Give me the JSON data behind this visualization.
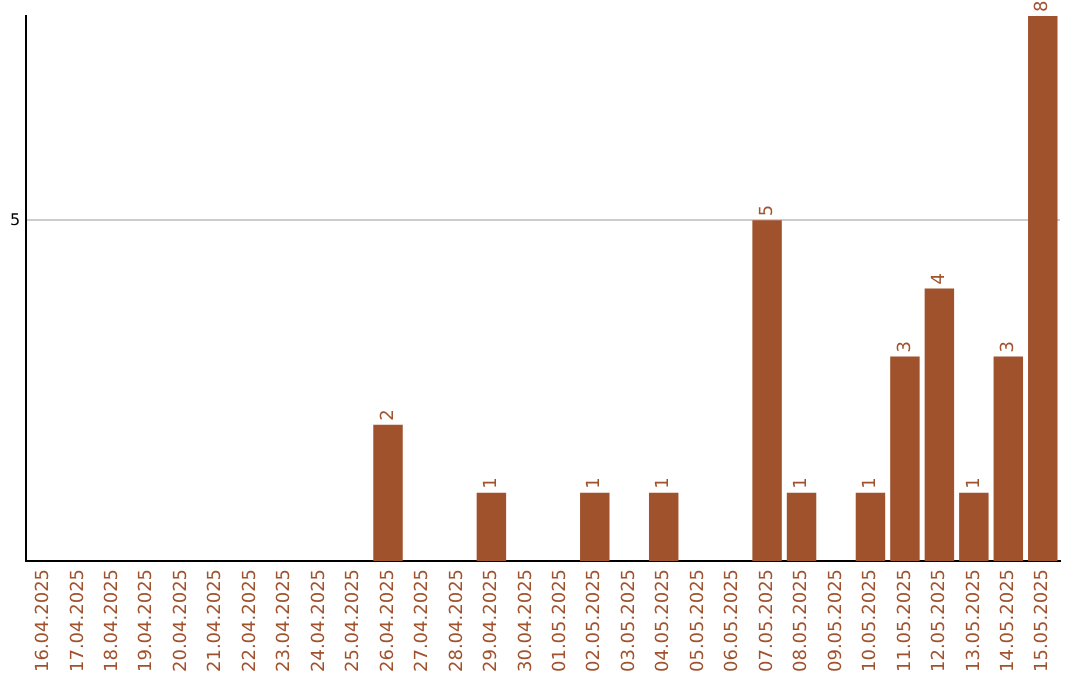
{
  "chart_data": {
    "type": "bar",
    "categories": [
      "16.04.2025",
      "17.04.2025",
      "18.04.2025",
      "19.04.2025",
      "20.04.2025",
      "21.04.2025",
      "22.04.2025",
      "23.04.2025",
      "24.04.2025",
      "25.04.2025",
      "26.04.2025",
      "27.04.2025",
      "28.04.2025",
      "29.04.2025",
      "30.04.2025",
      "01.05.2025",
      "02.05.2025",
      "03.05.2025",
      "04.05.2025",
      "05.05.2025",
      "06.05.2025",
      "07.05.2025",
      "08.05.2025",
      "09.05.2025",
      "10.05.2025",
      "11.05.2025",
      "12.05.2025",
      "13.05.2025",
      "14.05.2025",
      "15.05.2025"
    ],
    "values": [
      0,
      0,
      0,
      0,
      0,
      0,
      0,
      0,
      0,
      0,
      2,
      0,
      0,
      1,
      0,
      0,
      1,
      0,
      1,
      0,
      0,
      5,
      1,
      0,
      1,
      3,
      4,
      1,
      3,
      8
    ],
    "value_labels": [
      null,
      null,
      null,
      null,
      null,
      null,
      null,
      null,
      null,
      null,
      "2",
      null,
      null,
      "1",
      null,
      null,
      "1",
      null,
      "1",
      null,
      null,
      "5",
      "1",
      null,
      "1",
      "3",
      "4",
      "1",
      "3",
      "8"
    ],
    "color": "#a0522d",
    "ylim": [
      0,
      8
    ],
    "yticks": [
      5
    ],
    "grid": "y"
  }
}
